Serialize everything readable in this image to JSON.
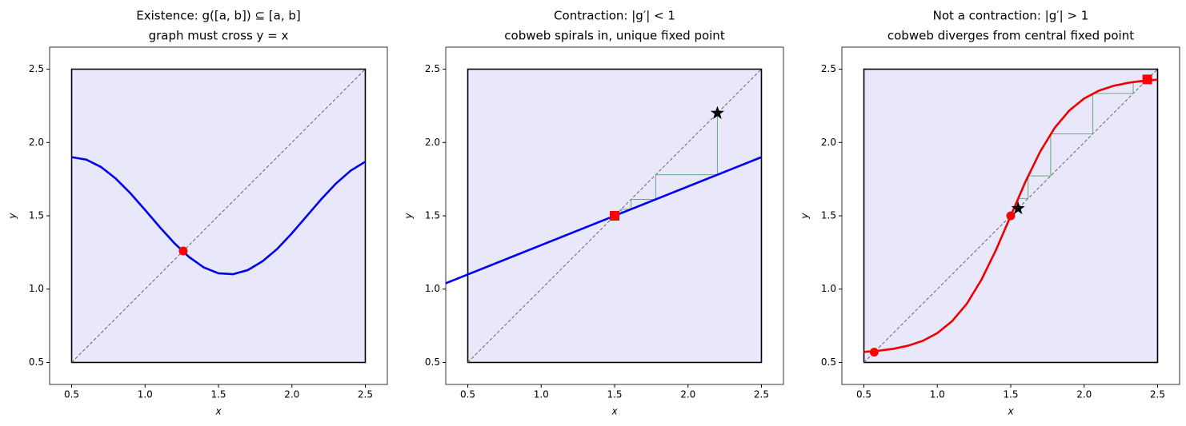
{
  "chart_data": [
    {
      "type": "line",
      "title": "Existence: g([a, b]) ⊆ [a, b]",
      "subtitle": "graph must cross y = x",
      "xlabel": "x",
      "ylabel": "y",
      "xlim": [
        0.35,
        2.65
      ],
      "ylim": [
        0.35,
        2.65
      ],
      "xticks": [
        0.5,
        {
          "value": 1,
          "label": "1.0"
        },
        1.5,
        {
          "value": 2,
          "label": "2.0"
        },
        2.5
      ],
      "yticks": [
        0.5,
        {
          "value": 1,
          "label": "1.0"
        },
        1.5,
        {
          "value": 2,
          "label": "2.0"
        },
        2.5
      ],
      "interval": [
        0.5,
        2.5
      ],
      "series": [
        {
          "color": "#0000ee",
          "x": [
            0.5,
            0.6,
            0.7,
            0.8,
            0.9,
            1.0,
            1.1,
            1.2,
            1.3,
            1.4,
            1.5,
            1.6,
            1.7,
            1.8,
            1.9,
            2.0,
            2.1,
            2.2,
            2.3,
            2.4,
            2.5
          ],
          "values": [
            1.9,
            1.883,
            1.833,
            1.754,
            1.654,
            1.54,
            1.423,
            1.313,
            1.219,
            1.148,
            1.108,
            1.102,
            1.13,
            1.19,
            1.274,
            1.381,
            1.497,
            1.613,
            1.72,
            1.808,
            1.869
          ]
        }
      ],
      "points": [
        {
          "x": 1.26,
          "y": 1.26,
          "marker": "circle",
          "color": "#ff0000"
        }
      ]
    },
    {
      "type": "line",
      "title": "Contraction: |g′| < 1",
      "subtitle": "cobweb spirals in, unique fixed point",
      "xlabel": "x",
      "ylabel": "y",
      "xlim": [
        0.35,
        2.65
      ],
      "ylim": [
        0.35,
        2.65
      ],
      "xticks": [
        0.5,
        {
          "value": 1,
          "label": "1.0"
        },
        1.5,
        {
          "value": 2,
          "label": "2.0"
        },
        2.5
      ],
      "yticks": [
        0.5,
        {
          "value": 1,
          "label": "1.0"
        },
        1.5,
        {
          "value": 2,
          "label": "2.0"
        },
        2.5
      ],
      "interval": [
        0.5,
        2.5
      ],
      "series": [
        {
          "color": "#0000ee",
          "x": [
            0.35,
            2.5
          ],
          "values": [
            1.04,
            1.9
          ]
        }
      ],
      "cobweb": {
        "color": "#6aaa7e",
        "x": [
          2.2,
          2.2,
          1.78,
          1.78,
          1.612,
          1.612,
          1.545,
          1.545,
          1.518
        ],
        "y": [
          2.2,
          1.78,
          1.78,
          1.612,
          1.612,
          1.545,
          1.545,
          1.518,
          1.518
        ]
      },
      "points": [
        {
          "x": 1.5,
          "y": 1.5,
          "marker": "square",
          "color": "#ff0000"
        },
        {
          "x": 2.2,
          "y": 2.2,
          "marker": "star",
          "color": "#000000"
        }
      ]
    },
    {
      "type": "line",
      "title": "Not a contraction: |g′| > 1",
      "subtitle": "cobweb diverges from central fixed point",
      "xlabel": "x",
      "ylabel": "y",
      "xlim": [
        0.35,
        2.65
      ],
      "ylim": [
        0.35,
        2.65
      ],
      "xticks": [
        0.5,
        {
          "value": 1,
          "label": "1.0"
        },
        1.5,
        {
          "value": 2,
          "label": "2.0"
        },
        2.5
      ],
      "yticks": [
        0.5,
        {
          "value": 1,
          "label": "1.0"
        },
        1.5,
        {
          "value": 2,
          "label": "2.0"
        },
        2.5
      ],
      "interval": [
        0.5,
        2.5
      ],
      "series": [
        {
          "color": "#ee0000",
          "x": [
            0.5,
            0.6,
            0.7,
            0.8,
            0.9,
            1.0,
            1.1,
            1.2,
            1.3,
            1.4,
            1.5,
            1.6,
            1.7,
            1.8,
            1.9,
            2.0,
            2.1,
            2.2,
            2.3,
            2.4,
            2.5
          ],
          "values": [
            0.572,
            0.58,
            0.593,
            0.614,
            0.647,
            0.7,
            0.781,
            0.899,
            1.063,
            1.268,
            1.5,
            1.732,
            1.937,
            2.101,
            2.219,
            2.3,
            2.353,
            2.386,
            2.407,
            2.42,
            2.428
          ]
        }
      ],
      "cobweb": {
        "color": "#6aaa7e",
        "x": [
          1.55,
          1.55,
          1.618,
          1.618,
          1.772,
          1.772,
          2.059,
          2.059,
          2.334,
          2.334,
          2.412
        ],
        "y": [
          1.55,
          1.618,
          1.618,
          1.772,
          1.772,
          2.059,
          2.059,
          2.334,
          2.334,
          2.412,
          2.412
        ]
      },
      "points": [
        {
          "x": 0.57,
          "y": 0.57,
          "marker": "circle",
          "color": "#ff0000"
        },
        {
          "x": 1.5,
          "y": 1.5,
          "marker": "circle",
          "color": "#ff0000"
        },
        {
          "x": 2.43,
          "y": 2.43,
          "marker": "square",
          "color": "#ff0000"
        },
        {
          "x": 1.55,
          "y": 1.55,
          "marker": "star",
          "color": "#000000"
        }
      ]
    }
  ]
}
